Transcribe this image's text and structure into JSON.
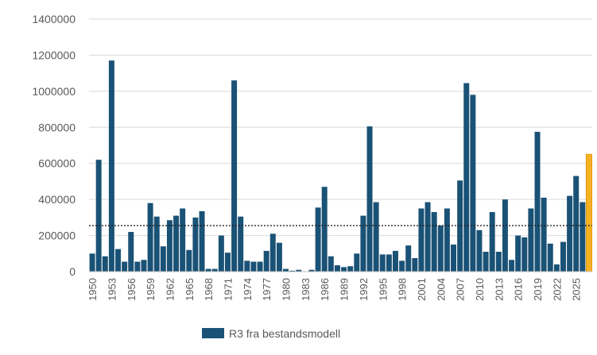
{
  "chart_data": {
    "type": "bar",
    "title": "",
    "xlabel": "",
    "ylabel": "",
    "ylim": [
      0,
      1400000
    ],
    "yticks": [
      "0",
      "200000",
      "400000",
      "600000",
      "800000",
      "1000000",
      "1200000",
      "1400000"
    ],
    "yticks_values": [
      0,
      200000,
      400000,
      600000,
      800000,
      1000000,
      1200000,
      1400000
    ],
    "grid": true,
    "legend_position": "bottom",
    "reference_line": {
      "value": 255000,
      "style": "dotted"
    },
    "x": [
      1950,
      1951,
      1952,
      1953,
      1954,
      1955,
      1956,
      1957,
      1958,
      1959,
      1960,
      1961,
      1962,
      1963,
      1964,
      1965,
      1966,
      1967,
      1968,
      1969,
      1970,
      1971,
      1972,
      1973,
      1974,
      1975,
      1976,
      1977,
      1978,
      1979,
      1980,
      1981,
      1982,
      1983,
      1984,
      1985,
      1986,
      1987,
      1988,
      1989,
      1990,
      1991,
      1992,
      1993,
      1994,
      1995,
      1996,
      1997,
      1998,
      1999,
      2000,
      2001,
      2002,
      2003,
      2004,
      2005,
      2006,
      2007,
      2008,
      2009,
      2010,
      2011,
      2012,
      2013,
      2014,
      2015,
      2016,
      2017,
      2018,
      2019,
      2020,
      2021,
      2022,
      2023,
      2024,
      2025,
      2026,
      2027
    ],
    "xtick_labels": [
      "1950",
      "1953",
      "1956",
      "1959",
      "1962",
      "1965",
      "1968",
      "1971",
      "1974",
      "1977",
      "1980",
      "1983",
      "1986",
      "1989",
      "1992",
      "1995",
      "1998",
      "2001",
      "2004",
      "2007",
      "2010",
      "2013",
      "2016",
      "2019",
      "2022",
      "2025"
    ],
    "series": [
      {
        "name": "R3 fra bestandsmodell",
        "color": "#1a5276",
        "values": [
          100000,
          620000,
          85000,
          1170000,
          125000,
          55000,
          220000,
          55000,
          65000,
          380000,
          305000,
          140000,
          285000,
          310000,
          350000,
          120000,
          300000,
          335000,
          15000,
          15000,
          200000,
          105000,
          1060000,
          305000,
          60000,
          55000,
          55000,
          115000,
          210000,
          160000,
          15000,
          5000,
          10000,
          0,
          10000,
          355000,
          470000,
          85000,
          35000,
          25000,
          30000,
          100000,
          310000,
          805000,
          385000,
          95000,
          95000,
          115000,
          60000,
          145000,
          75000,
          350000,
          385000,
          330000,
          255000,
          350000,
          150000,
          505000,
          1045000,
          980000,
          230000,
          110000,
          330000,
          110000,
          400000,
          65000,
          200000,
          190000,
          350000,
          775000,
          410000,
          155000,
          40000,
          165000,
          420000,
          530000,
          385000,
          0
        ]
      },
      {
        "name": "",
        "color": "#f5b324",
        "values": [
          0,
          0,
          0,
          0,
          0,
          0,
          0,
          0,
          0,
          0,
          0,
          0,
          0,
          0,
          0,
          0,
          0,
          0,
          0,
          0,
          0,
          0,
          0,
          0,
          0,
          0,
          0,
          0,
          0,
          0,
          0,
          0,
          0,
          0,
          0,
          0,
          0,
          0,
          0,
          0,
          0,
          0,
          0,
          0,
          0,
          0,
          0,
          0,
          0,
          0,
          0,
          0,
          0,
          0,
          0,
          0,
          0,
          0,
          0,
          0,
          0,
          0,
          0,
          0,
          0,
          0,
          0,
          0,
          0,
          0,
          0,
          0,
          0,
          0,
          0,
          0,
          0,
          650000
        ]
      }
    ]
  }
}
